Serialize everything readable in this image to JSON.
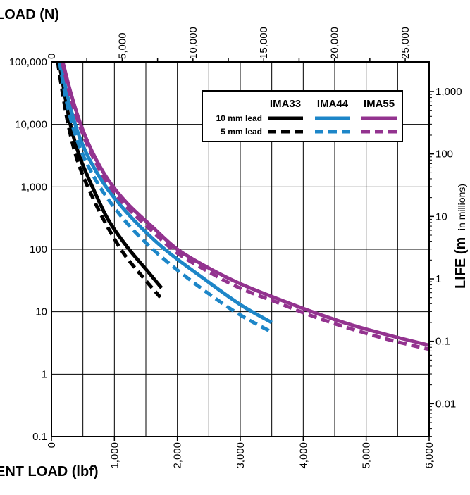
{
  "chart_data": {
    "type": "line",
    "top_axis_title": "LOAD (N)",
    "bottom_axis_title": "ENT LOAD (lbf)",
    "right_axis_title_main": "LIFE (m",
    "right_axis_title_sub": "in millions)",
    "right_axis_title_close": ")",
    "x_bottom": {
      "range": [
        0,
        6000
      ],
      "ticks": [
        "0",
        "1,000",
        "2,000",
        "3,000",
        "4,000",
        "5,000",
        "6,000"
      ],
      "values": [
        0,
        1000,
        2000,
        3000,
        4000,
        5000,
        6000
      ]
    },
    "x_top": {
      "range": [
        0,
        26690
      ],
      "ticks": [
        "0",
        "5,000",
        "10,000",
        "15,000",
        "20,000",
        "25,000"
      ],
      "values": [
        0,
        5000,
        10000,
        15000,
        20000,
        25000
      ]
    },
    "y_left": {
      "scale": "log",
      "range": [
        0.1,
        100000
      ],
      "ticks": [
        "100,000",
        "10,000",
        "1,000",
        "100",
        "10",
        "1",
        "0.1"
      ],
      "values": [
        100000,
        10000,
        1000,
        100,
        10,
        1,
        0.1
      ]
    },
    "y_right": {
      "scale": "log",
      "ticks": [
        "1,000",
        "100",
        "10",
        "1",
        "0.1",
        "0.01"
      ],
      "values": [
        1000,
        100,
        10,
        1,
        0.1,
        0.01
      ]
    },
    "grid": true,
    "legend": {
      "placement": "top-right",
      "columns": [
        "IMA33",
        "IMA44",
        "IMA55"
      ],
      "column_colors": [
        "#000000",
        "#1d86c8",
        "#93338f"
      ],
      "rows": [
        "10 mm lead",
        "5 mm lead"
      ]
    },
    "series": [
      {
        "model": "IMA33",
        "lead": "10 mm lead",
        "color": "#000000",
        "dash": false,
        "x": [
          120,
          200,
          300,
          450,
          650,
          900,
          1200,
          1500,
          1750
        ],
        "y": [
          100000,
          35000,
          10000,
          3000,
          1000,
          300,
          110,
          48,
          24
        ]
      },
      {
        "model": "IMA33",
        "lead": "5 mm lead",
        "color": "#000000",
        "dash": true,
        "x": [
          100,
          180,
          280,
          420,
          620,
          870,
          1150,
          1450,
          1730
        ],
        "y": [
          100000,
          30000,
          8500,
          2500,
          800,
          250,
          85,
          36,
          17
        ]
      },
      {
        "model": "IMA44",
        "lead": "10 mm lead",
        "color": "#1d86c8",
        "dash": false,
        "x": [
          140,
          250,
          400,
          600,
          900,
          1300,
          1800,
          2400,
          3000,
          3500
        ],
        "y": [
          100000,
          30000,
          8500,
          2800,
          900,
          300,
          100,
          35,
          13,
          6.7
        ]
      },
      {
        "model": "IMA44",
        "lead": "5 mm lead",
        "color": "#1d86c8",
        "dash": true,
        "x": [
          130,
          230,
          370,
          560,
          850,
          1250,
          1750,
          2350,
          2950,
          3500
        ],
        "y": [
          100000,
          26000,
          7300,
          2400,
          750,
          230,
          75,
          25,
          9.5,
          4.7
        ]
      },
      {
        "model": "IMA55",
        "lead": "10 mm lead",
        "color": "#93338f",
        "dash": false,
        "x": [
          180,
          300,
          450,
          650,
          900,
          1200,
          1600,
          2000,
          2500,
          3000,
          3600,
          4200,
          4800,
          5400,
          6000
        ],
        "y": [
          100000,
          34000,
          11000,
          3600,
          1300,
          550,
          230,
          100,
          50,
          28,
          16,
          9.5,
          6,
          4.1,
          2.9
        ]
      },
      {
        "model": "IMA55",
        "lead": "5 mm lead",
        "color": "#93338f",
        "dash": true,
        "x": [
          170,
          290,
          440,
          640,
          890,
          1190,
          1590,
          1990,
          2490,
          2990,
          3590,
          4190,
          4790,
          5390,
          6000
        ],
        "y": [
          100000,
          31000,
          10000,
          3300,
          1150,
          480,
          200,
          88,
          44,
          24,
          14,
          8.2,
          5.2,
          3.5,
          2.5
        ]
      }
    ]
  }
}
